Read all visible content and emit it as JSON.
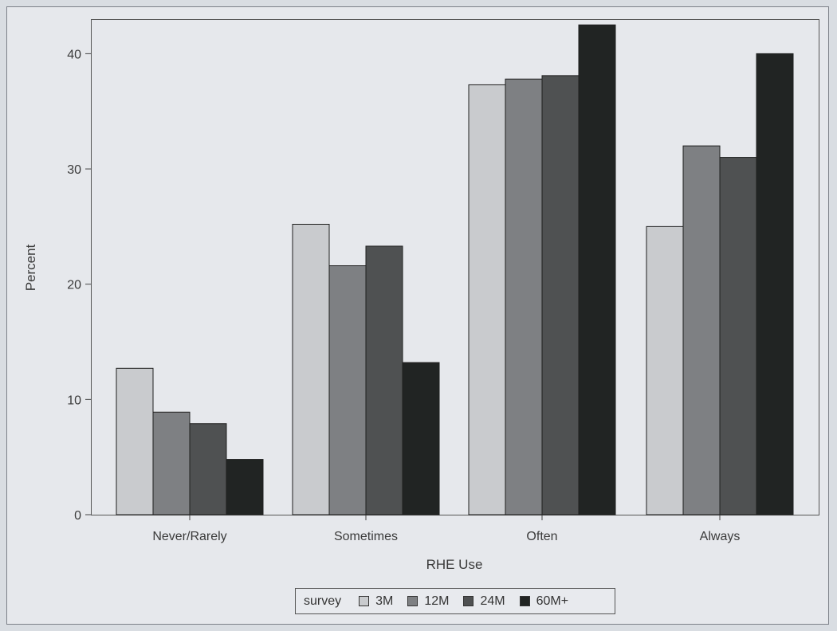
{
  "chart_data": {
    "type": "bar",
    "title": "",
    "xlabel": "RHE Use",
    "ylabel": "Percent",
    "categories": [
      "Never/Rarely",
      "Sometimes",
      "Often",
      "Always"
    ],
    "ylim": [
      0,
      43
    ],
    "yticks": [
      0,
      10,
      20,
      30,
      40
    ],
    "grid": false,
    "legend": {
      "title": "survey",
      "placement": "bottom-center"
    },
    "series": [
      {
        "name": "3M",
        "color": "#c9cbce",
        "values": [
          12.7,
          25.2,
          37.3,
          25.0
        ]
      },
      {
        "name": "12M",
        "color": "#7e8083",
        "values": [
          8.9,
          21.6,
          37.8,
          32.0
        ]
      },
      {
        "name": "24M",
        "color": "#4f5152",
        "values": [
          7.9,
          23.3,
          38.1,
          31.0
        ]
      },
      {
        "name": "60M+",
        "color": "#212423",
        "values": [
          4.8,
          13.2,
          42.5,
          40.0
        ]
      }
    ]
  }
}
